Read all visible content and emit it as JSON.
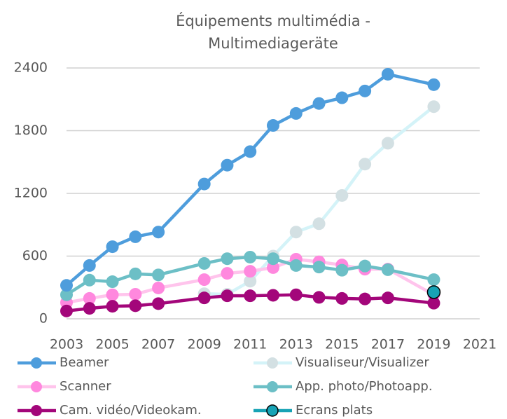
{
  "chart_data": {
    "type": "line",
    "title": [
      "Équipements multimédia -",
      "Multimediageräte"
    ],
    "x": [
      2003,
      2004,
      2005,
      2006,
      2007,
      2009,
      2010,
      2011,
      2012,
      2013,
      2014,
      2015,
      2016,
      2017,
      2019
    ],
    "xlim": [
      2003,
      2021
    ],
    "xticks": [
      2003,
      2005,
      2007,
      2009,
      2011,
      2013,
      2015,
      2017,
      2019,
      2021
    ],
    "ylim": [
      0,
      2400
    ],
    "yticks": [
      0,
      600,
      1200,
      1800,
      2400
    ],
    "grid": true,
    "series": [
      {
        "name": "Beamer",
        "color": "#4e9ddc",
        "marker_color": "#4e9ddc",
        "values": [
          320,
          510,
          690,
          785,
          830,
          1290,
          1470,
          1600,
          1850,
          1965,
          2060,
          2115,
          2180,
          2340,
          2240
        ]
      },
      {
        "name": "Visualiseur/Visualizer",
        "color": "#d4f3f8",
        "marker_color": "#d3e0e3",
        "values": [
          null,
          null,
          null,
          null,
          null,
          240,
          235,
          360,
          600,
          830,
          910,
          1180,
          1480,
          1680,
          2030
        ]
      },
      {
        "name": "Scanner",
        "color": "#ffc4ec",
        "marker_color": "#ff88de",
        "values": [
          155,
          195,
          230,
          235,
          295,
          375,
          435,
          455,
          490,
          570,
          545,
          515,
          475,
          475,
          230
        ]
      },
      {
        "name": "App. photo/Photoapp.",
        "color": "#6cbfc6",
        "marker_color": "#6cbfc6",
        "values": [
          230,
          370,
          355,
          430,
          420,
          530,
          575,
          590,
          575,
          510,
          495,
          465,
          505,
          470,
          375
        ]
      },
      {
        "name": "Cam. vidéo/Videokam.",
        "color": "#a3067a",
        "marker_color": "#a3067a",
        "values": [
          75,
          100,
          120,
          125,
          145,
          200,
          220,
          220,
          225,
          230,
          205,
          195,
          190,
          200,
          150
        ]
      },
      {
        "name": "Ecrans plats",
        "color": "#17a3b5",
        "marker_color": "#17a3b5",
        "values": [
          null,
          null,
          null,
          null,
          null,
          null,
          null,
          null,
          null,
          null,
          null,
          null,
          null,
          null,
          255
        ]
      }
    ]
  }
}
